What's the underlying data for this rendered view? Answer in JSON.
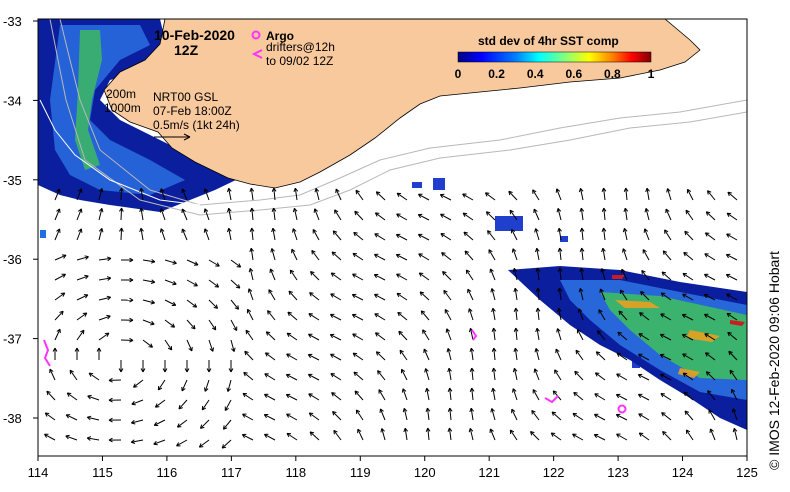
{
  "header": {
    "date": "10-Feb-2020",
    "hour": "12Z"
  },
  "argo_legend": {
    "title": "Argo",
    "drifters_line1": "drifters@12h",
    "drifters_line2": "to 09/02 12Z",
    "argo_color": "#ff33ff",
    "drifter_color": "#ff33ff"
  },
  "colorbar": {
    "title": "std dev of 4hr SST comp",
    "ticks": [
      "0",
      "0.2",
      "0.4",
      "0.6",
      "0.8",
      "1"
    ],
    "range": [
      0,
      1
    ],
    "colors": [
      "#000080",
      "#0000ff",
      "#0080ff",
      "#00ffff",
      "#80ff80",
      "#ffff00",
      "#ff8000",
      "#ff0000",
      "#800000"
    ]
  },
  "contour_labels": {
    "shelf_200": "200m",
    "shelf_1000": "1000m"
  },
  "currents": {
    "product": "NRT00 GSL",
    "time": "07-Feb 18:00Z",
    "scale_label": "0.5m/s (1kt 24h)"
  },
  "axes": {
    "x_ticks": [
      "114",
      "115",
      "116",
      "117",
      "118",
      "119",
      "120",
      "121",
      "122",
      "123",
      "124",
      "125"
    ],
    "y_ticks": [
      "-33",
      "-34",
      "-35",
      "-36",
      "-37",
      "-38"
    ],
    "lon_range": [
      114,
      125
    ],
    "lat_range": [
      -38.5,
      -33
    ]
  },
  "credit": "© IMOS 12-Feb-2020 09:06 Hobart",
  "colors": {
    "land": "#f9c99e",
    "sst_low": "#00008b",
    "sst_mid": "#1e90ff",
    "sst_high": "#32cd32"
  }
}
